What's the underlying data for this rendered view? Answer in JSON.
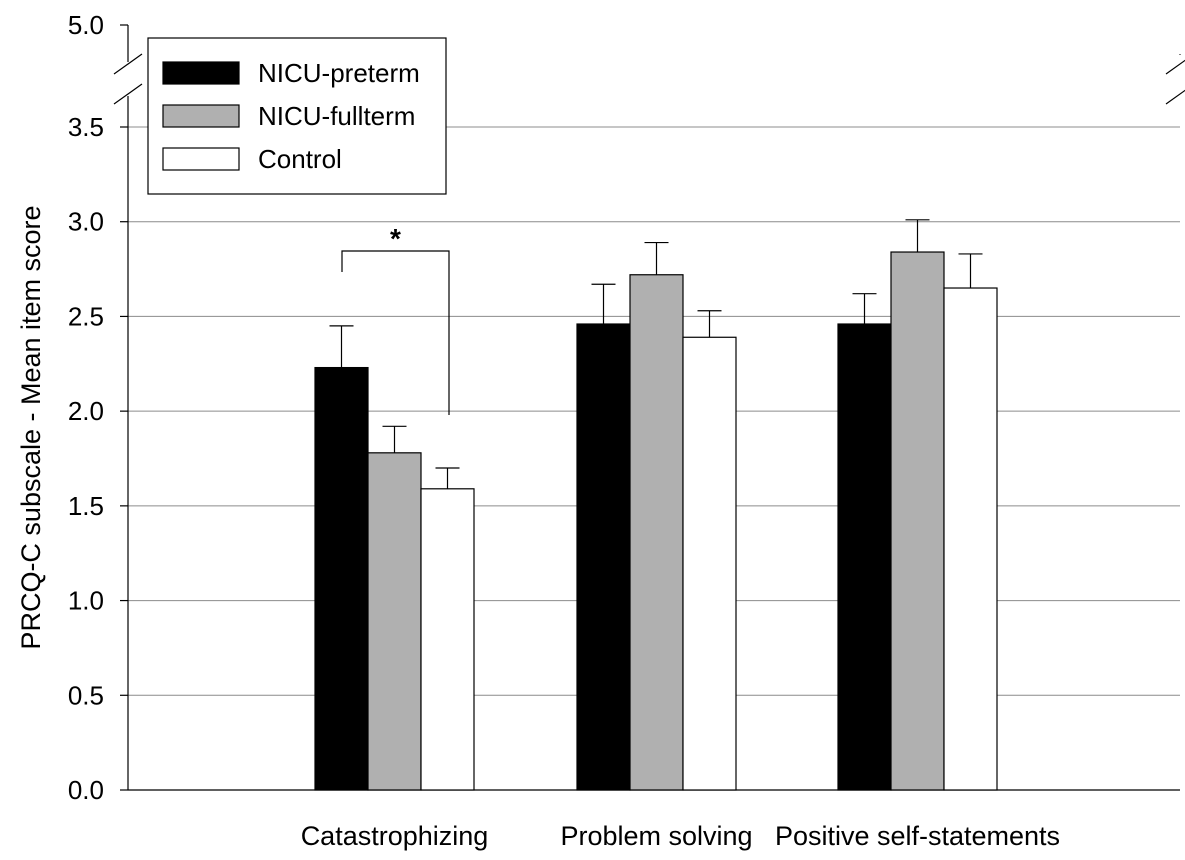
{
  "chart_data": {
    "type": "bar",
    "categories": [
      "Catastrophizing",
      "Problem solving",
      "Positive self-statements"
    ],
    "series": [
      {
        "name": "NICU-preterm",
        "values": [
          2.23,
          2.46,
          2.46
        ],
        "errors": [
          0.22,
          0.21,
          0.16
        ]
      },
      {
        "name": "NICU-fullterm",
        "values": [
          1.78,
          2.72,
          2.84
        ],
        "errors": [
          0.14,
          0.17,
          0.17
        ]
      },
      {
        "name": "Control",
        "values": [
          1.59,
          2.39,
          2.65
        ],
        "errors": [
          0.11,
          0.14,
          0.18
        ]
      }
    ],
    "ylabel": "PRCQ-C subscale - Mean item score",
    "xlabel": "",
    "ylim": [
      0,
      5.0
    ],
    "yticks": [
      "0.0",
      "0.5",
      "1.0",
      "1.5",
      "2.0",
      "2.5",
      "3.0",
      "3.5",
      "5.0"
    ],
    "axis_break": {
      "from": 3.5,
      "to": 5.0
    },
    "grid": true,
    "legend_position": "top-left",
    "annotations": [
      {
        "text": "*",
        "category": "Catastrophizing",
        "between": [
          "NICU-preterm",
          "Control"
        ]
      }
    ],
    "colors": {
      "NICU-preterm": "#000000",
      "NICU-fullterm": "#b0b0b0",
      "Control": "#ffffff"
    }
  }
}
